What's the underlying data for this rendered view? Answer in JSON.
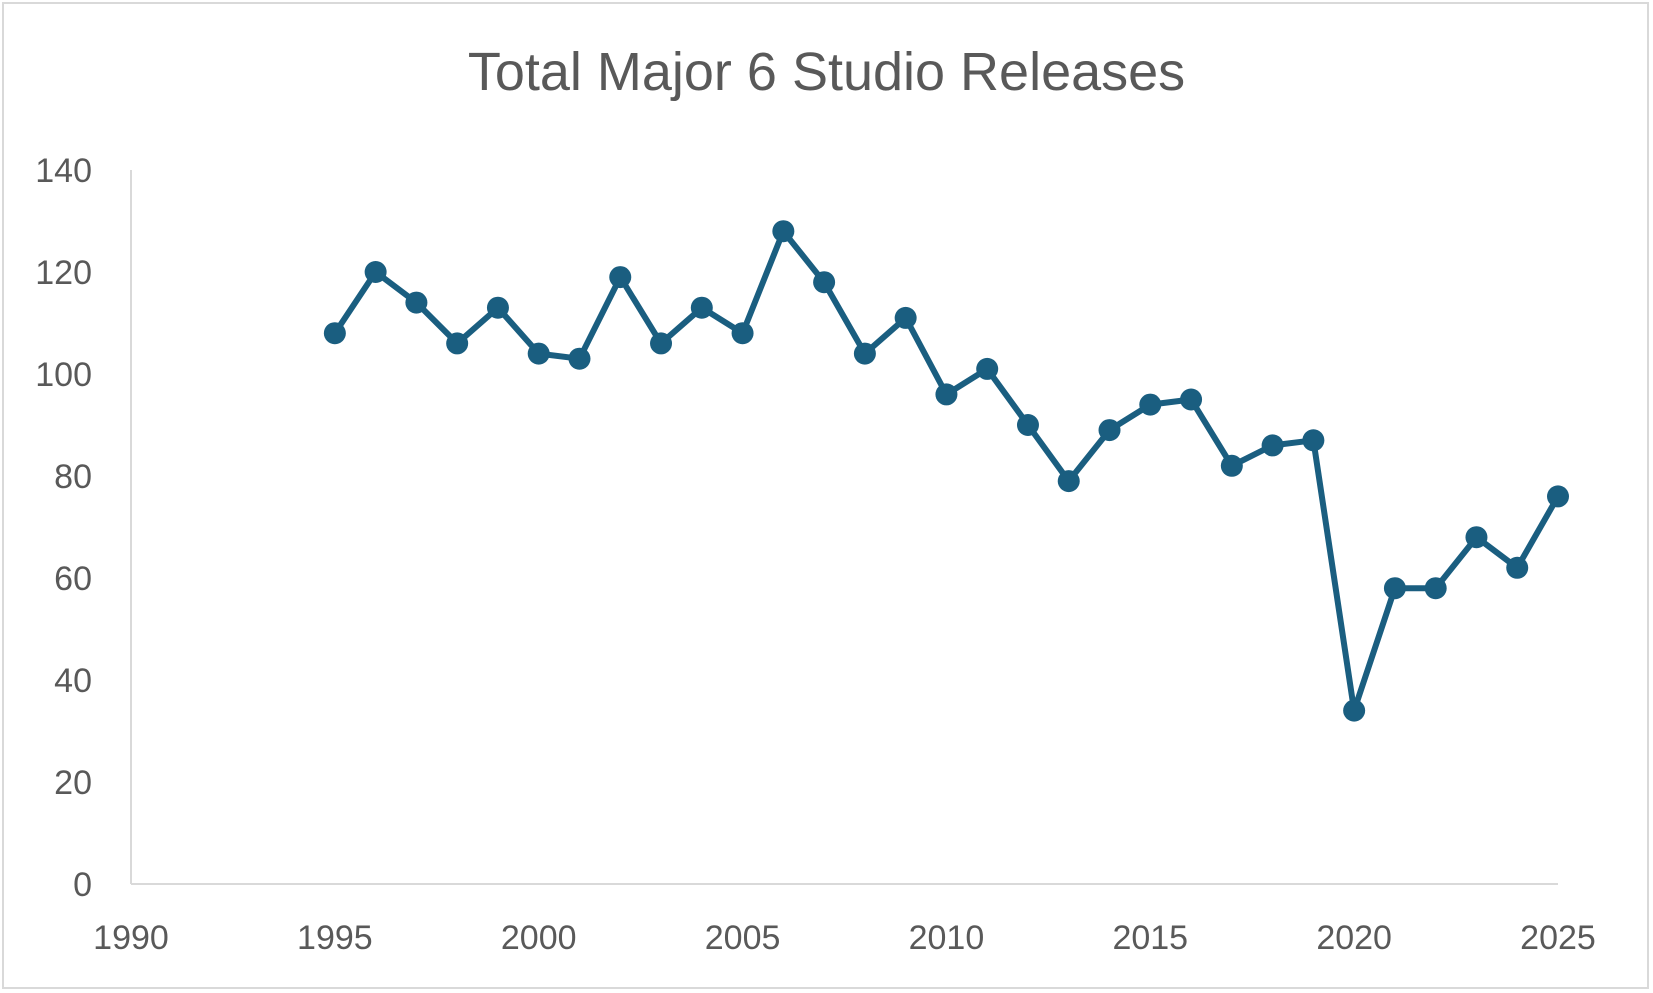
{
  "chart_data": {
    "type": "line",
    "title": "Total Major 6 Studio Releases",
    "xlabel": "",
    "ylabel": "",
    "xlim": [
      1990,
      2025
    ],
    "ylim": [
      0,
      140
    ],
    "x_ticks": [
      1990,
      1995,
      2000,
      2005,
      2010,
      2015,
      2020,
      2025
    ],
    "y_ticks": [
      0,
      20,
      40,
      60,
      80,
      100,
      120,
      140
    ],
    "grid": false,
    "legend": "none",
    "series": [
      {
        "color": "#1a5e80",
        "marker": "circle",
        "x": [
          1995,
          1996,
          1997,
          1998,
          1999,
          2000,
          2001,
          2002,
          2003,
          2004,
          2005,
          2006,
          2007,
          2008,
          2009,
          2010,
          2011,
          2012,
          2013,
          2014,
          2015,
          2016,
          2017,
          2018,
          2019,
          2020,
          2021,
          2022,
          2023,
          2024,
          2025
        ],
        "y": [
          108,
          120,
          114,
          106,
          113,
          104,
          103,
          119,
          106,
          113,
          108,
          128,
          118,
          104,
          111,
          96,
          101,
          90,
          79,
          89,
          94,
          95,
          82,
          86,
          87,
          34,
          58,
          58,
          68,
          62,
          76
        ]
      }
    ]
  },
  "colors": {
    "axis": "#d9d9d9",
    "text": "#595959",
    "series": "#1a5e80"
  }
}
